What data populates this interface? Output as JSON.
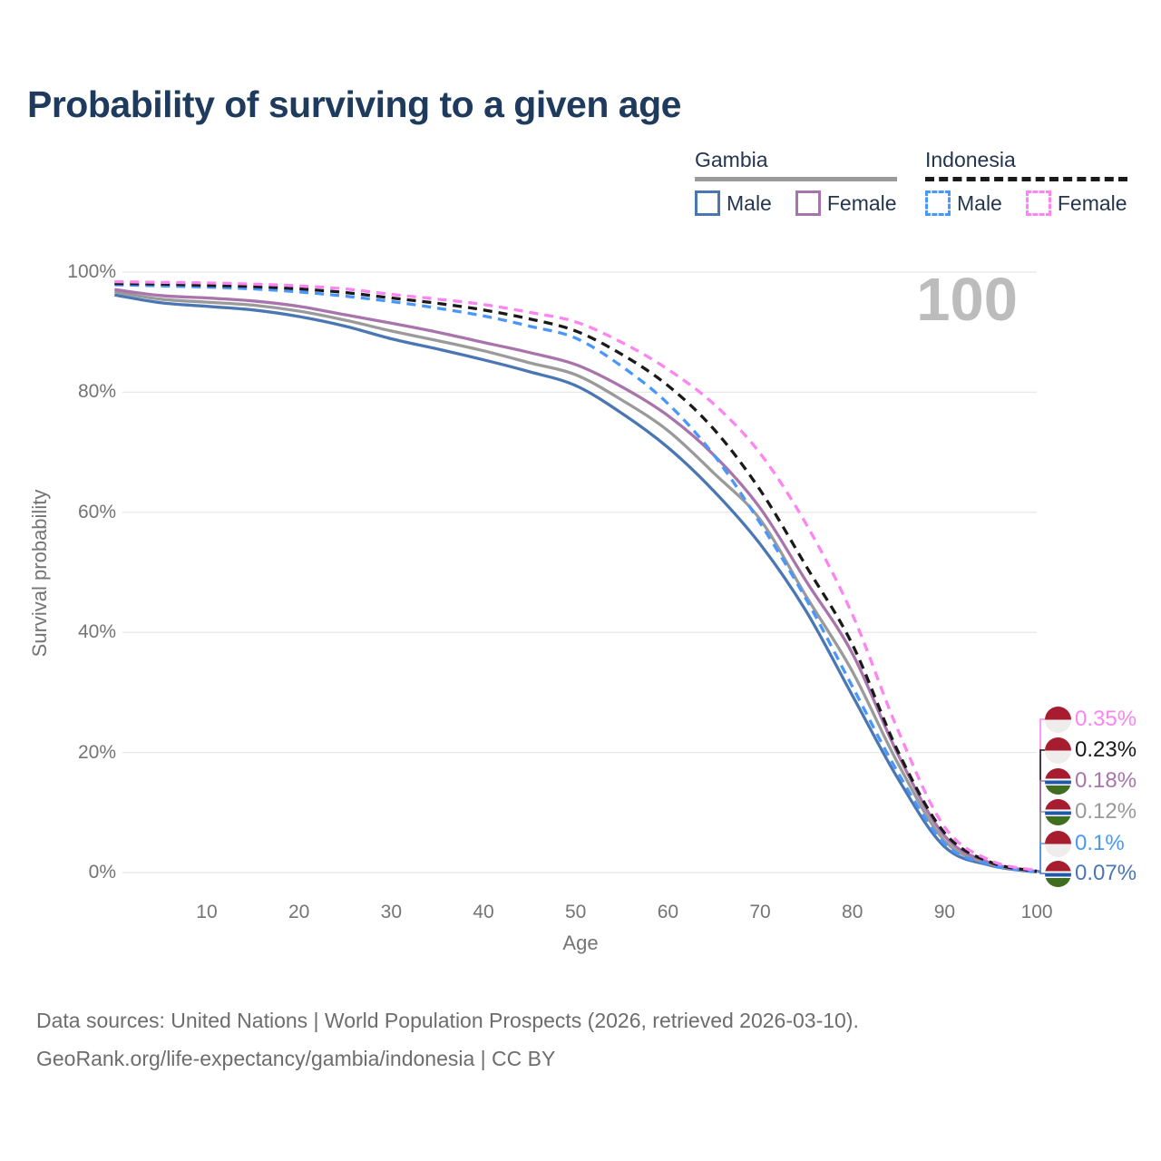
{
  "page": {
    "title": "Probability of surviving to a given age",
    "watermark": "100",
    "footer_line1": "Data sources: United Nations | World Population Prospects (2026, retrieved 2026-03-10).",
    "footer_line2": "GeoRank.org/life-expectancy/gambia/indonesia | CC BY"
  },
  "legend": {
    "groups": [
      {
        "title": "Gambia",
        "underline_color": "#9a9a9a",
        "underline_dashed": false,
        "items": [
          {
            "label": "Male",
            "color": "#4a77b4",
            "dashed": false
          },
          {
            "label": "Female",
            "color": "#a874ab",
            "dashed": false
          }
        ]
      },
      {
        "title": "Indonesia",
        "underline_color": "#1a1a1a",
        "underline_dashed": true,
        "items": [
          {
            "label": "Male",
            "color": "#4a97fc",
            "dashed": true
          },
          {
            "label": "Female",
            "color": "#fc85f2",
            "dashed": true
          }
        ]
      }
    ]
  },
  "axes": {
    "y_title": "Survival probability",
    "x_title": "Age",
    "y_ticks": [
      "0%",
      "20%",
      "40%",
      "60%",
      "80%",
      "100%"
    ],
    "x_ticks": [
      10,
      20,
      30,
      40,
      50,
      60,
      70,
      80,
      90,
      100
    ]
  },
  "end_labels": [
    {
      "text": "0.35%",
      "color": "#fc85f2",
      "flag": "indonesia",
      "series": "Indonesia Female"
    },
    {
      "text": "0.23%",
      "color": "#1a1a1a",
      "flag": "indonesia",
      "series": "Indonesia Both sexes"
    },
    {
      "text": "0.18%",
      "color": "#a874ab",
      "flag": "gambia",
      "series": "Gambia Female"
    },
    {
      "text": "0.12%",
      "color": "#999999",
      "flag": "gambia",
      "series": "Gambia Both sexes"
    },
    {
      "text": "0.1%",
      "color": "#4a97fc",
      "flag": "indonesia",
      "series": "Indonesia Male"
    },
    {
      "text": "0.07%",
      "color": "#4a77b4",
      "flag": "gambia",
      "series": "Gambia Male"
    }
  ],
  "flags": {
    "indonesia": [
      "#a81c30 0%",
      "#a81c30 50%",
      "#efecec 50%",
      "#efecec 100%"
    ],
    "gambia": [
      "#a81c30 0%",
      "#a81c30 40%",
      "#ffffff 40%",
      "#ffffff 46%",
      "#2158a8 46%",
      "#2158a8 60%",
      "#ffffff 60%",
      "#ffffff 66%",
      "#3f6e21 66%",
      "#3f6e21 100%"
    ]
  },
  "chart_data": {
    "type": "line",
    "title": "Probability of surviving to a given age",
    "xlabel": "Age",
    "ylabel": "Survival probability",
    "xlim": [
      0,
      100
    ],
    "ylim": [
      0,
      100
    ],
    "grid": "horizontal-only",
    "legend_position": "top-right",
    "x_ages": [
      0,
      5,
      10,
      15,
      20,
      25,
      30,
      35,
      40,
      45,
      50,
      55,
      60,
      65,
      70,
      75,
      80,
      85,
      90,
      95,
      100
    ],
    "series": [
      {
        "name": "Gambia Male",
        "country": "Gambia",
        "sex": "Male",
        "color": "#4a77b4",
        "dashed": false,
        "end_label": "0.07%",
        "values": [
          96.2,
          94.9,
          94.3,
          93.7,
          92.6,
          91.0,
          88.9,
          87.2,
          85.4,
          83.4,
          81.1,
          76.5,
          70.8,
          63.5,
          54.7,
          43.5,
          29.5,
          15.5,
          4.3,
          1.2,
          0.07
        ]
      },
      {
        "name": "Gambia Both sexes",
        "country": "Gambia",
        "sex": "Both",
        "color": "#9a9a9a",
        "dashed": false,
        "end_label": "0.12%",
        "values": [
          96.7,
          95.5,
          95.0,
          94.5,
          93.5,
          92.0,
          90.2,
          88.6,
          86.9,
          84.9,
          82.9,
          78.7,
          73.6,
          66.5,
          58.8,
          46.0,
          33.5,
          18.0,
          5.3,
          1.4,
          0.12
        ]
      },
      {
        "name": "Gambia Female",
        "country": "Gambia",
        "sex": "Female",
        "color": "#a874ab",
        "dashed": false,
        "end_label": "0.18%",
        "values": [
          97.1,
          96.1,
          95.7,
          95.2,
          94.3,
          92.9,
          91.5,
          90.0,
          88.3,
          86.6,
          84.6,
          80.9,
          76.1,
          69.5,
          60.7,
          48.5,
          36.5,
          19.5,
          6.1,
          1.6,
          0.18
        ]
      },
      {
        "name": "Indonesia Male",
        "country": "Indonesia",
        "sex": "Male",
        "color": "#4a97fc",
        "dashed": true,
        "end_label": "0.1%",
        "values": [
          97.9,
          97.7,
          97.5,
          97.2,
          96.7,
          96.0,
          95.1,
          94.0,
          92.7,
          91.0,
          89.0,
          84.3,
          78.1,
          69.5,
          58.2,
          45.5,
          31.0,
          16.5,
          4.8,
          1.3,
          0.1
        ]
      },
      {
        "name": "Indonesia Both sexes",
        "country": "Indonesia",
        "sex": "Both",
        "color": "#1a1a1a",
        "dashed": true,
        "end_label": "0.23%",
        "values": [
          98.1,
          98.0,
          97.8,
          97.6,
          97.2,
          96.6,
          95.7,
          94.8,
          93.7,
          92.2,
          90.2,
          86.3,
          81.1,
          73.8,
          63.7,
          51.0,
          38.0,
          20.0,
          6.6,
          1.7,
          0.23
        ]
      },
      {
        "name": "Indonesia Female",
        "country": "Indonesia",
        "sex": "Female",
        "color": "#fc85f2",
        "dashed": true,
        "end_label": "0.35%",
        "values": [
          98.4,
          98.3,
          98.2,
          98.0,
          97.7,
          97.2,
          96.3,
          95.5,
          94.6,
          93.3,
          91.7,
          88.3,
          83.8,
          78.0,
          69.8,
          58.0,
          43.0,
          23.5,
          7.6,
          2.0,
          0.35
        ]
      }
    ]
  }
}
